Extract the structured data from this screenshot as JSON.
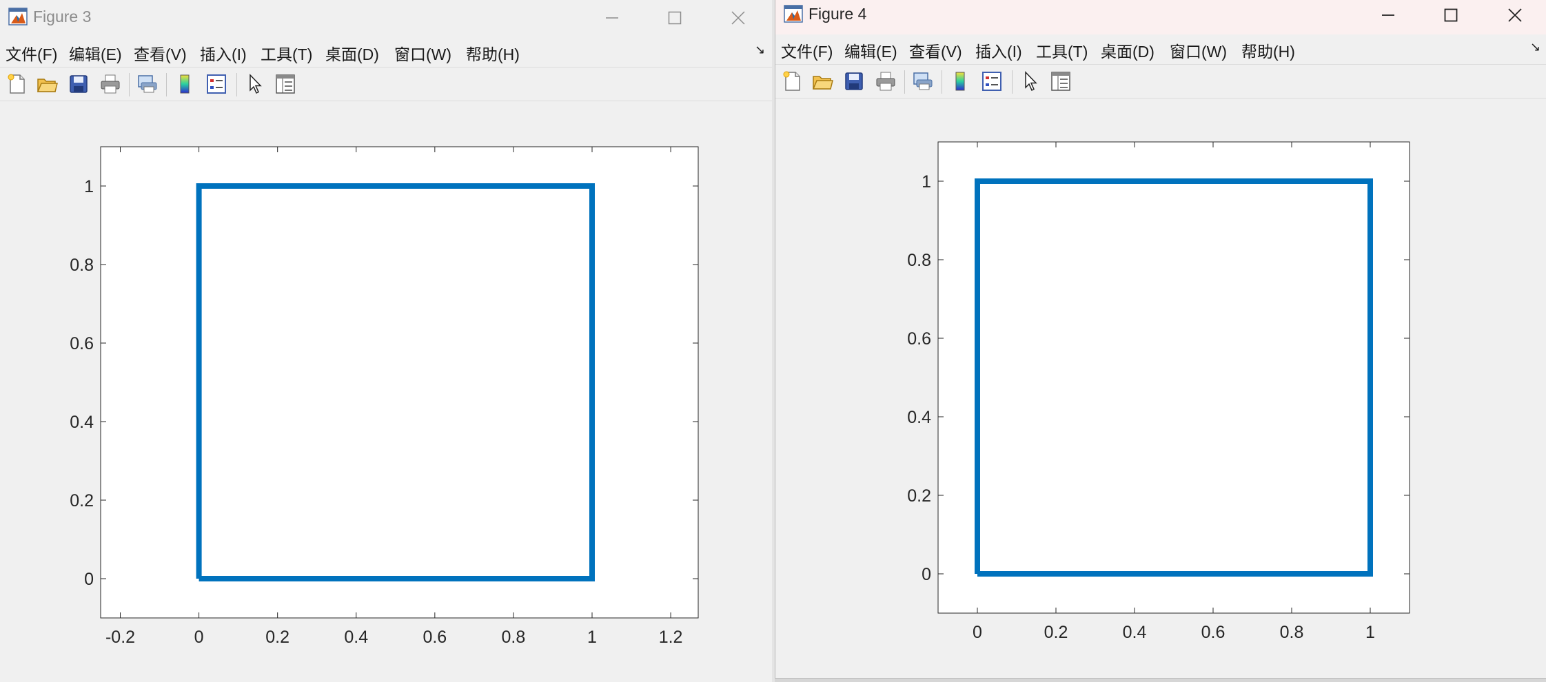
{
  "figures": [
    {
      "title": "Figure 3",
      "menu": [
        "文件(F)",
        "编辑(E)",
        "查看(V)",
        "插入(I)",
        "工具(T)",
        "桌面(D)",
        "窗口(W)",
        "帮助(H)"
      ],
      "toolbar_icons": [
        "new-figure-icon",
        "open-file-icon",
        "save-icon",
        "print-icon",
        "print-preview-icon",
        "colorbar-icon",
        "legend-icon",
        "pointer-icon",
        "property-inspector-icon"
      ],
      "axes": {
        "x_ticks": [
          "-0.2",
          "0",
          "0.2",
          "0.4",
          "0.6",
          "0.8",
          "1",
          "1.2"
        ],
        "y_ticks": [
          "0",
          "0.2",
          "0.4",
          "0.6",
          "0.8",
          "1"
        ]
      }
    },
    {
      "title": "Figure 4",
      "menu": [
        "文件(F)",
        "编辑(E)",
        "查看(V)",
        "插入(I)",
        "工具(T)",
        "桌面(D)",
        "窗口(W)",
        "帮助(H)"
      ],
      "toolbar_icons": [
        "new-figure-icon",
        "open-file-icon",
        "save-icon",
        "print-icon",
        "print-preview-icon",
        "colorbar-icon",
        "legend-icon",
        "pointer-icon",
        "property-inspector-icon"
      ],
      "axes": {
        "x_ticks": [
          "0",
          "0.2",
          "0.4",
          "0.6",
          "0.8",
          "1"
        ],
        "y_ticks": [
          "0",
          "0.2",
          "0.4",
          "0.6",
          "0.8",
          "1"
        ]
      }
    }
  ],
  "colors": {
    "series": "#0072bd",
    "axes": "#262626",
    "window_bg": "#f0f0f0"
  },
  "chart_data": [
    {
      "type": "line",
      "x": [
        0,
        1,
        1,
        0,
        0
      ],
      "y": [
        0,
        0,
        1,
        1,
        0
      ],
      "xlim": [
        -0.25,
        1.27
      ],
      "ylim": [
        -0.1,
        1.1
      ],
      "xticks": [
        -0.2,
        0,
        0.2,
        0.4,
        0.6,
        0.8,
        1,
        1.2
      ],
      "yticks": [
        0,
        0.2,
        0.4,
        0.6,
        0.8,
        1
      ],
      "grid": false
    },
    {
      "type": "line",
      "x": [
        0,
        1,
        1,
        0,
        0
      ],
      "y": [
        0,
        0,
        1,
        1,
        0
      ],
      "xlim": [
        -0.1,
        1.1
      ],
      "ylim": [
        -0.1,
        1.1
      ],
      "xticks": [
        0,
        0.2,
        0.4,
        0.6,
        0.8,
        1
      ],
      "yticks": [
        0,
        0.2,
        0.4,
        0.6,
        0.8,
        1
      ],
      "grid": false
    }
  ]
}
